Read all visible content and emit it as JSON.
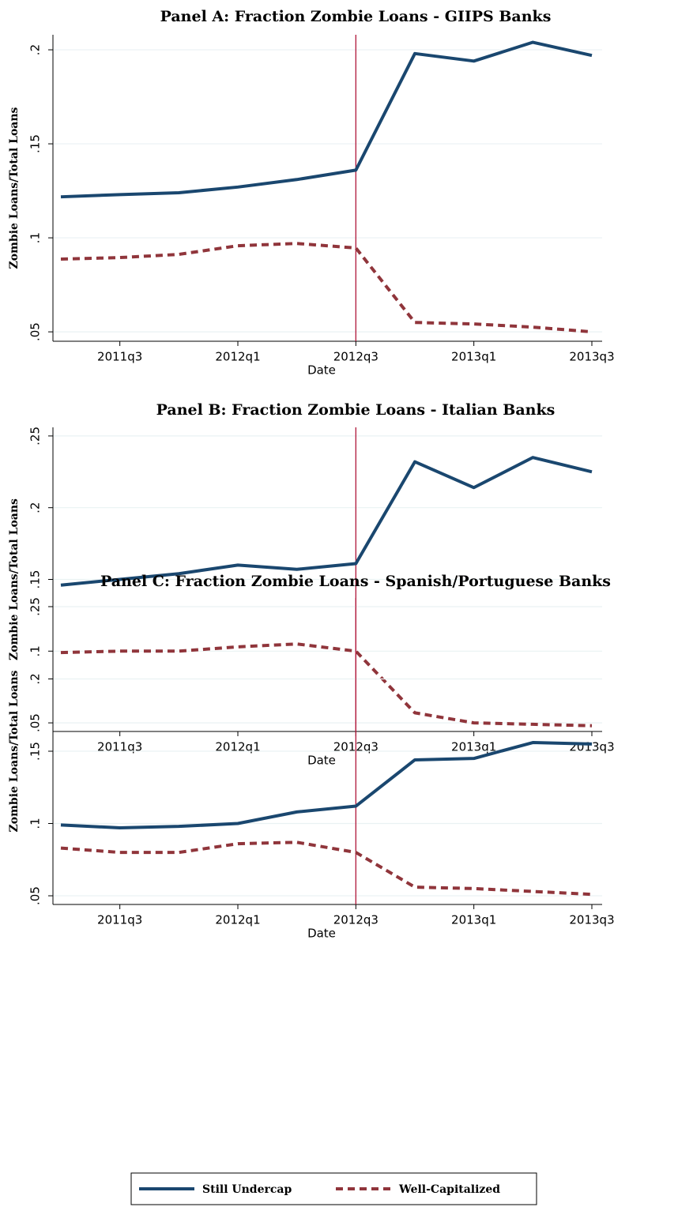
{
  "chart_data": [
    {
      "type": "line",
      "title": "Panel A: Fraction Zombie Loans - GIIPS Banks",
      "x_label": "Date",
      "y_label": "Zombie Loans/Total Loans",
      "categories": [
        null,
        "2011q3",
        null,
        "2012q1",
        null,
        "2012q3",
        null,
        "2013q1",
        null,
        "2013q3"
      ],
      "ylim": [
        0.045,
        0.208
      ],
      "yticks": [
        {
          "value": 0.05,
          "label": ".05"
        },
        {
          "value": 0.1,
          "label": ".1"
        },
        {
          "value": 0.15,
          "label": ".15"
        },
        {
          "value": 0.2,
          "label": ".2"
        }
      ],
      "grid": true,
      "vline": "2012q3",
      "series": [
        {
          "name": "Still Undercap",
          "color": "#1a476f",
          "values": [
            0.1218,
            0.123,
            0.124,
            0.127,
            0.131,
            0.136,
            0.198,
            0.194,
            0.204,
            0.197
          ]
        },
        {
          "name": "Well-Capitalized",
          "color": "#90353b",
          "values": [
            0.0887,
            0.0895,
            0.0912,
            0.0958,
            0.097,
            0.0946,
            0.055,
            0.0542,
            0.0525,
            0.05
          ]
        }
      ]
    },
    {
      "type": "line",
      "title": "Panel B: Fraction Zombie Loans - Italian Banks",
      "x_label": "Date",
      "y_label": "Zombie Loans/Total Loans",
      "categories": [
        null,
        "2011q3",
        null,
        "2012q1",
        null,
        "2012q3",
        null,
        "2013q1",
        null,
        "2013q3"
      ],
      "ylim": [
        0.044,
        0.256
      ],
      "yticks": [
        {
          "value": 0.05,
          "label": ".05"
        },
        {
          "value": 0.1,
          "label": ".1"
        },
        {
          "value": 0.15,
          "label": ".15"
        },
        {
          "value": 0.2,
          "label": ".2"
        },
        {
          "value": 0.25,
          "label": ".25"
        }
      ],
      "grid": true,
      "vline": "2012q3",
      "series": [
        {
          "name": "Still Undercap",
          "color": "#1a476f",
          "values": [
            0.146,
            0.15,
            0.154,
            0.16,
            0.157,
            0.161,
            0.232,
            0.214,
            0.235,
            0.225
          ]
        },
        {
          "name": "Well-Capitalized",
          "color": "#90353b",
          "values": [
            0.099,
            0.1,
            0.1,
            0.103,
            0.105,
            0.1,
            0.057,
            0.05,
            0.049,
            0.048
          ]
        }
      ]
    },
    {
      "type": "line",
      "title": "Panel C: Fraction Zombie Loans - Spanish/Portuguese Banks",
      "x_label": "Date",
      "y_label": "Zombie Loans/Total Loans",
      "categories": [
        null,
        "2011q3",
        null,
        "2012q1",
        null,
        "2012q3",
        null,
        "2013q1",
        null,
        "2013q3"
      ],
      "ylim": [
        0.044,
        0.256
      ],
      "yticks": [
        {
          "value": 0.05,
          "label": ".05"
        },
        {
          "value": 0.1,
          "label": ".1"
        },
        {
          "value": 0.15,
          "label": ".15"
        },
        {
          "value": 0.2,
          "label": ".2"
        },
        {
          "value": 0.25,
          "label": ".25"
        }
      ],
      "grid": true,
      "vline": "2012q3",
      "legend": "bottom",
      "series": [
        {
          "name": "Still Undercap",
          "color": "#1a476f",
          "values": [
            0.099,
            0.097,
            0.098,
            0.1,
            0.108,
            0.112,
            0.144,
            0.145,
            0.156,
            0.155
          ]
        },
        {
          "name": "Well-Capitalized",
          "color": "#90353b",
          "values": [
            0.083,
            0.08,
            0.08,
            0.086,
            0.087,
            0.08,
            0.056,
            0.055,
            0.053,
            0.051
          ]
        }
      ]
    }
  ]
}
